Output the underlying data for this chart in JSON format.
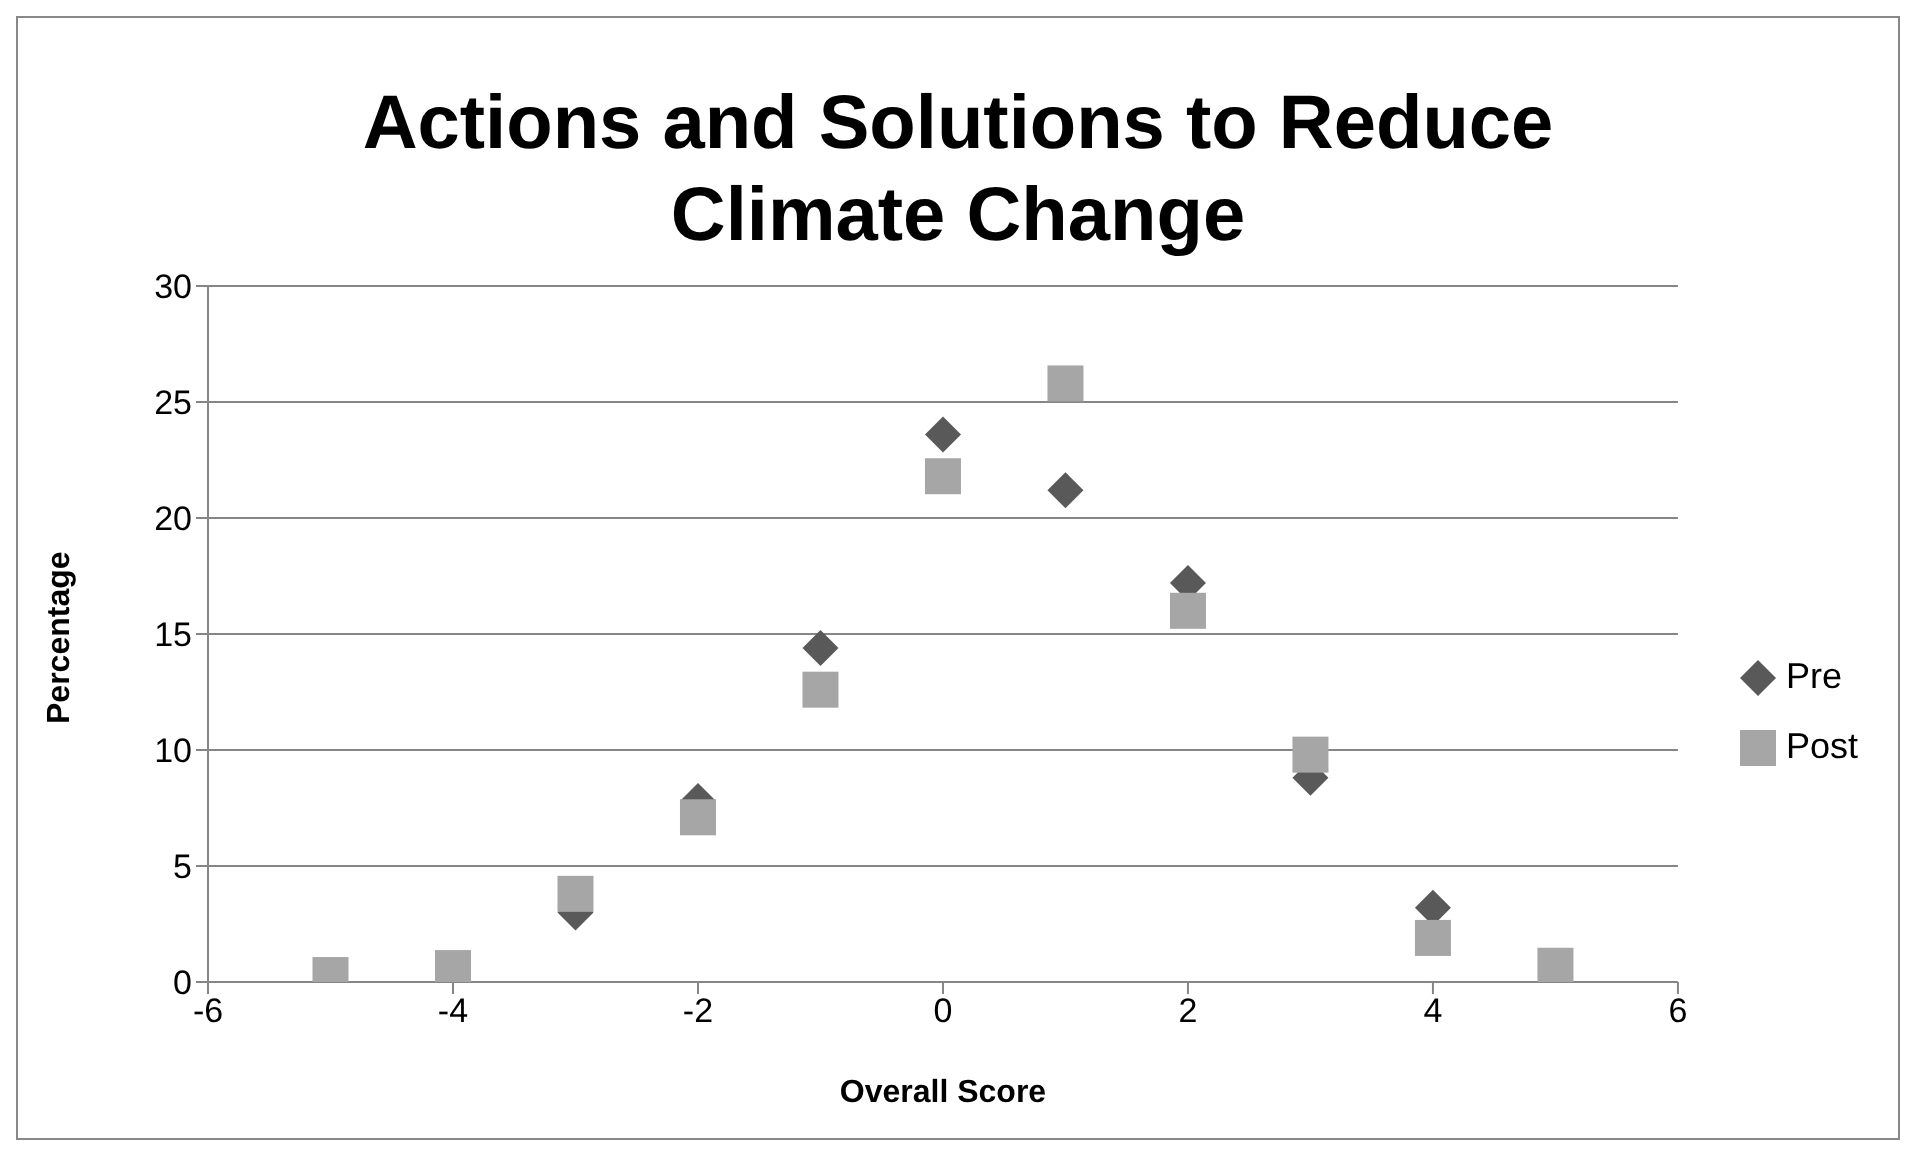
{
  "chart_data": {
    "type": "scatter",
    "title": "Actions and Solutions to Reduce Climate Change",
    "xlabel": "Overall Score",
    "ylabel": "Percentage",
    "x": [
      -5,
      -4,
      -3,
      -2,
      -1,
      0,
      1,
      2,
      3,
      4,
      5
    ],
    "series": [
      {
        "name": "Pre",
        "color": "#595959",
        "marker": "diamond",
        "values": [
          null,
          null,
          3.0,
          7.8,
          14.4,
          23.6,
          21.2,
          17.2,
          8.8,
          3.2,
          null
        ]
      },
      {
        "name": "Post",
        "color": "#a6a6a6",
        "marker": "square",
        "values": [
          0.3,
          0.6,
          3.8,
          7.1,
          12.6,
          21.8,
          25.8,
          16.0,
          9.8,
          1.9,
          0.7
        ]
      }
    ],
    "xlim": [
      -6,
      6
    ],
    "xticks": [
      -6,
      -4,
      -2,
      0,
      2,
      4,
      6
    ],
    "ylim": [
      0,
      30
    ],
    "yticks": [
      0,
      5,
      10,
      15,
      20,
      25,
      30
    ],
    "grid": "y",
    "legend": "right"
  }
}
